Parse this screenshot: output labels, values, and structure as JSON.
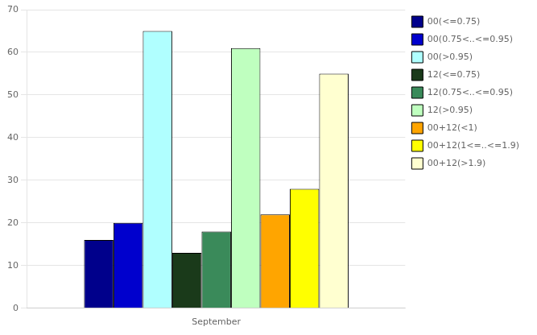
{
  "chart_data": {
    "type": "bar",
    "categories": [
      "September"
    ],
    "series": [
      {
        "name": "00(<=0.75)",
        "color": "#00008B",
        "values": [
          16
        ]
      },
      {
        "name": "00(0.75<..<=0.95)",
        "color": "#0000CD",
        "values": [
          20
        ]
      },
      {
        "name": "00(>0.95)",
        "color": "#B0FFFF",
        "values": [
          65
        ]
      },
      {
        "name": "12(<=0.75)",
        "color": "#1A3A1A",
        "values": [
          13
        ]
      },
      {
        "name": "12(0.75<..<=0.95)",
        "color": "#3A8A5A",
        "values": [
          18
        ]
      },
      {
        "name": "12(>0.95)",
        "color": "#BFFFBF",
        "values": [
          61
        ]
      },
      {
        "name": "00+12(<1)",
        "color": "#FFA500",
        "values": [
          22
        ]
      },
      {
        "name": "00+12(1<=..<=1.9)",
        "color": "#FFFF00",
        "values": [
          28
        ]
      },
      {
        "name": "00+12(>1.9)",
        "color": "#FFFFD0",
        "values": [
          55
        ]
      }
    ],
    "ylim": [
      0,
      70
    ],
    "yticks": [
      0,
      10,
      20,
      30,
      40,
      50,
      60,
      70
    ],
    "grid": true,
    "legend": "right"
  }
}
